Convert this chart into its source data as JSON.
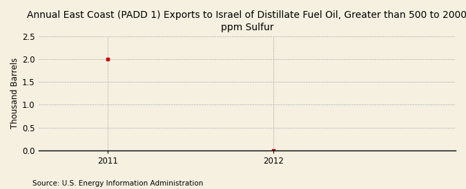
{
  "title": "Annual East Coast (PADD 1) Exports to Israel of Distillate Fuel Oil, Greater than 500 to 2000\nppm Sulfur",
  "ylabel": "Thousand Barrels",
  "source": "Source: U.S. Energy Information Administration",
  "x_values": [
    2011,
    2012
  ],
  "y_values": [
    2.0,
    0.0
  ],
  "xlim": [
    2010.58,
    2013.1
  ],
  "ylim": [
    0.0,
    2.5
  ],
  "yticks": [
    0.0,
    0.5,
    1.0,
    1.5,
    2.0,
    2.5
  ],
  "xticks": [
    2011,
    2012
  ],
  "marker_color": "#cc0000",
  "bg_color": "#f5f0e0",
  "plot_bg_color": "#f5f0e0",
  "grid_color": "#aaaaaa",
  "title_fontsize": 10,
  "axis_label_fontsize": 8.5,
  "tick_fontsize": 8.5,
  "source_fontsize": 7.5
}
